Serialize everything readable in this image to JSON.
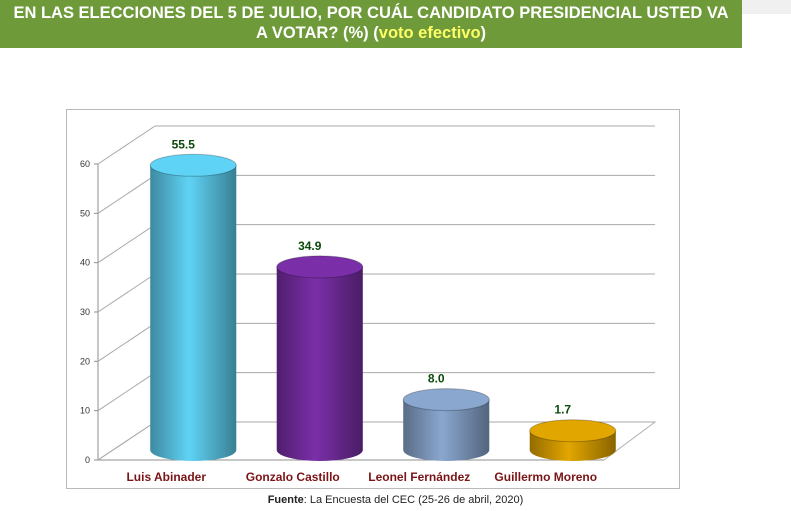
{
  "header": {
    "line1": "EN LAS ELECCIONES DEL 5 DE JULIO, POR CUÁL CANDIDATO PRESIDENCIAL USTED VA",
    "line2_main": "A VOTAR? (%) (",
    "line2_accent": "voto efectivo",
    "line2_end": ")"
  },
  "colors": {
    "header_bg": "#6f9a3a",
    "accent": "#ffff66",
    "category_label": "#7b1416",
    "value_label": "#0b4a0b"
  },
  "chart_data": {
    "type": "bar",
    "style": "3d-cylinder",
    "categories": [
      "Luis Abinader",
      "Gonzalo Castillo",
      "Leonel Fernández",
      "Guillermo Moreno"
    ],
    "values": [
      55.5,
      34.9,
      8.0,
      1.7
    ],
    "value_labels": [
      "55.5",
      "34.9",
      "8.0",
      "1.7"
    ],
    "bar_colors": [
      "#5fd3f5",
      "#7a2fa8",
      "#8aa7cf",
      "#e2a600"
    ],
    "yticks": [
      "0",
      "10",
      "20",
      "30",
      "40",
      "50",
      "60"
    ],
    "ylim": [
      0,
      60
    ],
    "grid": true,
    "legend": false
  },
  "source": {
    "label": "Fuente",
    "text": ": La Encuesta del CEC (25-26 de abril, 2020)"
  }
}
